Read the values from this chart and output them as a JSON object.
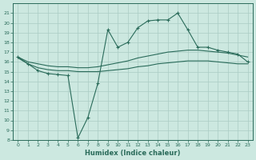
{
  "xlabel": "Humidex (Indice chaleur)",
  "background_color": "#cce8e0",
  "grid_color": "#aaccC4",
  "line_color": "#2a6b5a",
  "xlim": [
    -0.5,
    23.5
  ],
  "ylim": [
    8,
    22
  ],
  "xticks": [
    0,
    1,
    2,
    3,
    4,
    5,
    6,
    7,
    8,
    9,
    10,
    11,
    12,
    13,
    14,
    15,
    16,
    17,
    18,
    19,
    20,
    21,
    22,
    23
  ],
  "yticks": [
    8,
    9,
    10,
    11,
    12,
    13,
    14,
    15,
    16,
    17,
    18,
    19,
    20,
    21
  ],
  "curve1_x": [
    0,
    1,
    2,
    3,
    4,
    5,
    6,
    7,
    8,
    9,
    10,
    11,
    12,
    13,
    14,
    15,
    16,
    17,
    18,
    19,
    20,
    21,
    22,
    23
  ],
  "curve1_y": [
    16.5,
    15.8,
    15.1,
    14.8,
    14.7,
    14.6,
    8.2,
    10.3,
    13.8,
    19.3,
    17.5,
    18.0,
    19.5,
    20.2,
    20.3,
    20.3,
    21.0,
    19.3,
    17.5,
    17.5,
    17.2,
    17.0,
    16.8,
    16.0
  ],
  "curve2_x": [
    0,
    1,
    2,
    3,
    4,
    5,
    6,
    7,
    8,
    9,
    10,
    11,
    12,
    13,
    14,
    15,
    16,
    17,
    18,
    19,
    20,
    21,
    22,
    23
  ],
  "curve2_y": [
    16.5,
    16.0,
    15.8,
    15.6,
    15.5,
    15.5,
    15.4,
    15.4,
    15.5,
    15.7,
    15.9,
    16.1,
    16.4,
    16.6,
    16.8,
    17.0,
    17.1,
    17.2,
    17.2,
    17.1,
    17.0,
    16.9,
    16.7,
    16.5
  ],
  "curve3_x": [
    0,
    1,
    2,
    3,
    4,
    5,
    6,
    7,
    8,
    9,
    10,
    11,
    12,
    13,
    14,
    15,
    16,
    17,
    18,
    19,
    20,
    21,
    22,
    23
  ],
  "curve3_y": [
    16.4,
    15.8,
    15.4,
    15.2,
    15.1,
    15.1,
    15.0,
    15.0,
    15.0,
    15.1,
    15.2,
    15.3,
    15.5,
    15.6,
    15.8,
    15.9,
    16.0,
    16.1,
    16.1,
    16.1,
    16.0,
    15.9,
    15.8,
    15.8
  ]
}
